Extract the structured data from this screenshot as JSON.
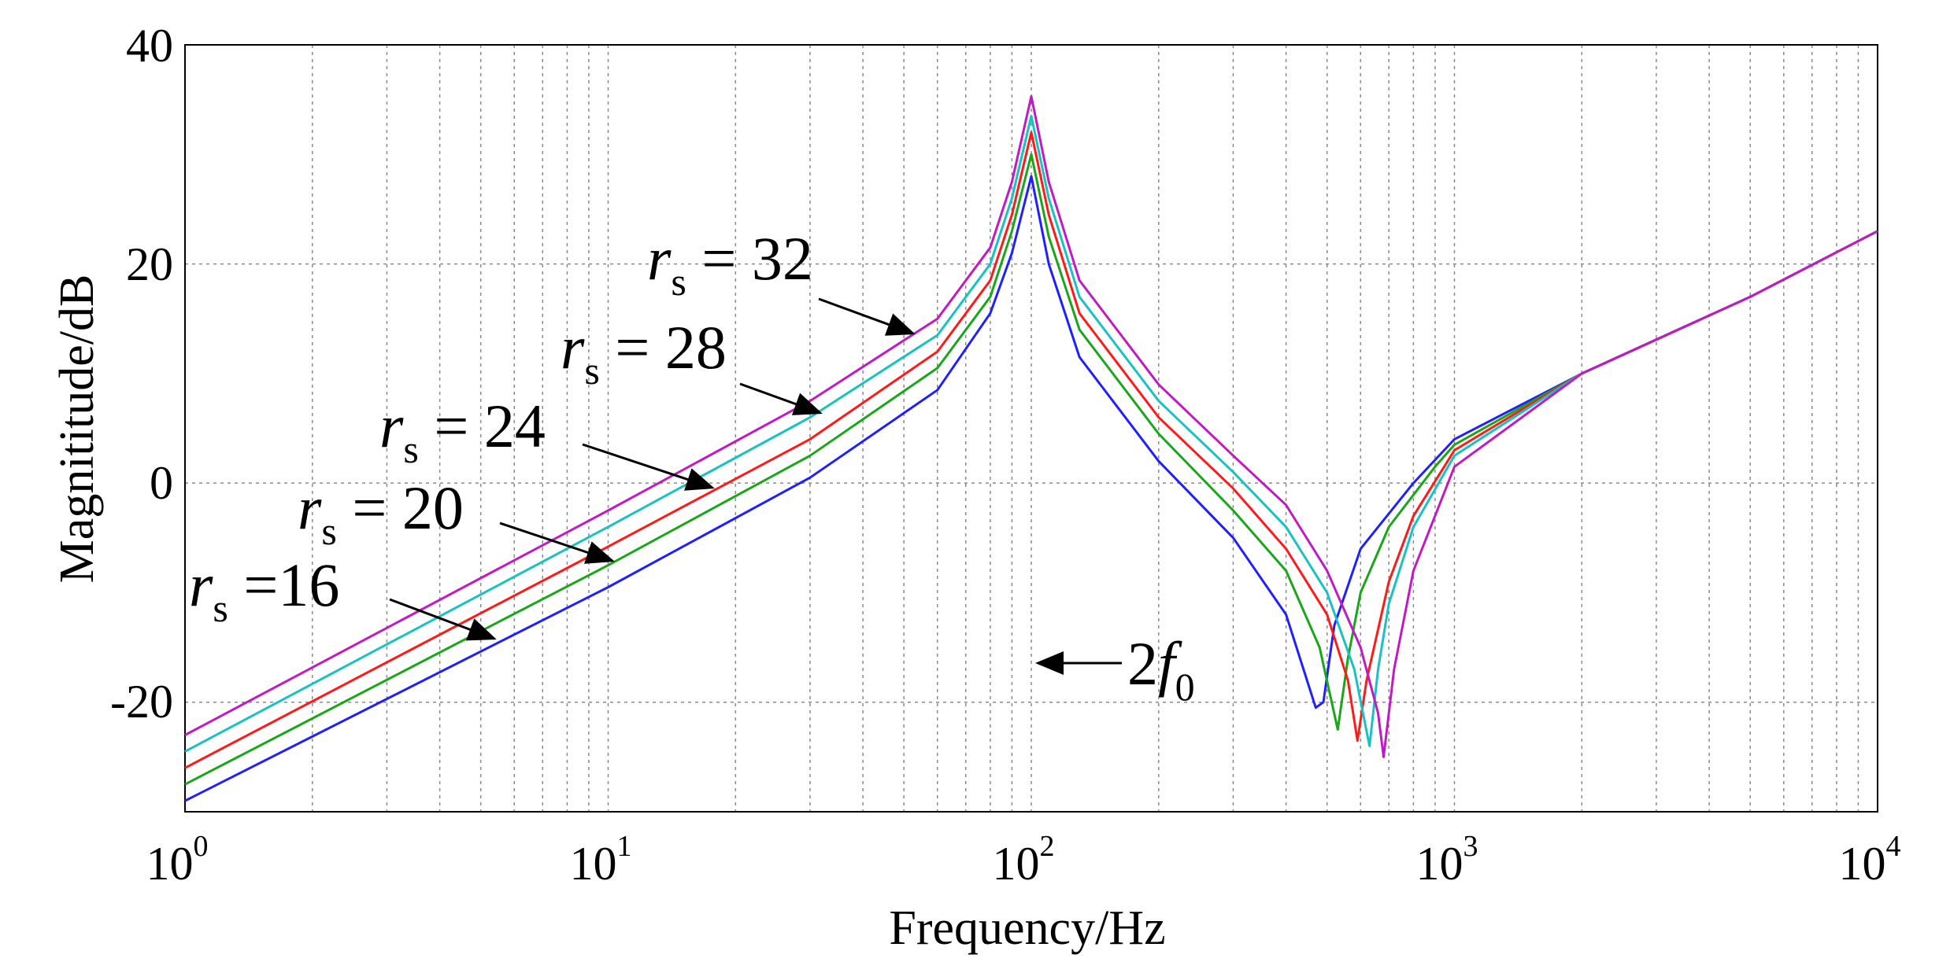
{
  "chart_data": {
    "type": "line",
    "title": "",
    "xlabel": "Frequency/Hz",
    "ylabel": "Magnititude/dB",
    "xscale": "log",
    "xlim": [
      1,
      10000
    ],
    "ylim": [
      -30,
      40
    ],
    "grid": true,
    "x_ticks": [
      {
        "base": "10",
        "exp": "0"
      },
      {
        "base": "10",
        "exp": "1"
      },
      {
        "base": "10",
        "exp": "2"
      },
      {
        "base": "10",
        "exp": "3"
      },
      {
        "base": "10",
        "exp": "4"
      }
    ],
    "y_ticks": [
      "40",
      "20",
      "0",
      "-20"
    ],
    "series": [
      {
        "name": "rs = 16",
        "color": "#1f1fff",
        "x": [
          1,
          10,
          30,
          60,
          80,
          90,
          100,
          110,
          130,
          200,
          300,
          400,
          470,
          490,
          520,
          600,
          800,
          1000,
          2000,
          5000,
          10000
        ],
        "y": [
          -29,
          -9.5,
          0.5,
          8.5,
          15.5,
          21,
          28,
          20,
          11.5,
          2,
          -5,
          -12,
          -20.5,
          -20,
          -13,
          -6,
          0,
          4,
          10,
          17,
          23
        ]
      },
      {
        "name": "rs = 20",
        "color": "#19a619",
        "x": [
          1,
          10,
          30,
          60,
          80,
          90,
          100,
          110,
          130,
          200,
          300,
          400,
          480,
          530,
          560,
          600,
          700,
          900,
          1000,
          2000,
          5000,
          10000
        ],
        "y": [
          -27.5,
          -7.5,
          2.5,
          10.5,
          17,
          23,
          30,
          22.5,
          14,
          4.5,
          -2.5,
          -8,
          -15,
          -22.5,
          -16,
          -10,
          -4,
          1.5,
          3.5,
          10,
          17,
          23
        ]
      },
      {
        "name": "rs = 24",
        "color": "#ff1a1a",
        "x": [
          1,
          10,
          30,
          60,
          80,
          90,
          100,
          110,
          130,
          200,
          300,
          400,
          500,
          560,
          590,
          620,
          700,
          800,
          1000,
          2000,
          5000,
          10000
        ],
        "y": [
          -26,
          -5.8,
          4,
          12,
          18.5,
          24.5,
          32,
          24.5,
          15.5,
          6,
          -0.5,
          -6,
          -12,
          -18,
          -23.5,
          -18,
          -9,
          -3,
          3,
          10,
          17,
          23
        ]
      },
      {
        "name": "rs = 28",
        "color": "#19c2c2",
        "x": [
          1,
          10,
          30,
          60,
          80,
          90,
          100,
          110,
          130,
          200,
          300,
          400,
          500,
          580,
          630,
          660,
          700,
          800,
          1000,
          2000,
          5000,
          10000
        ],
        "y": [
          -24.5,
          -4,
          6,
          13.5,
          20,
          26,
          33.5,
          26,
          17,
          7.5,
          1,
          -4,
          -10,
          -17,
          -24,
          -17,
          -11,
          -4,
          2.5,
          10,
          17,
          23
        ]
      },
      {
        "name": "rs = 32",
        "color": "#c21ac2",
        "x": [
          1,
          10,
          30,
          60,
          80,
          90,
          100,
          110,
          130,
          200,
          300,
          400,
          500,
          600,
          660,
          680,
          720,
          800,
          1000,
          2000,
          5000,
          10000
        ],
        "y": [
          -23,
          -2.5,
          7.5,
          15,
          21.5,
          27.5,
          35.3,
          27.5,
          18.5,
          9,
          2.5,
          -2,
          -8,
          -15,
          -21,
          -25,
          -17,
          -8,
          1.5,
          10,
          17,
          23
        ]
      }
    ],
    "annotations": [
      {
        "var": "r",
        "sub": "s",
        "text": " = 32"
      },
      {
        "var": "r",
        "sub": "s",
        "text": " = 28"
      },
      {
        "var": "r",
        "sub": "s",
        "text": " = 24"
      },
      {
        "var": "r",
        "sub": "s",
        "text": " = 20"
      },
      {
        "var": "r",
        "sub": "s",
        "text": " =16"
      },
      {
        "prefix": "2",
        "var": "f",
        "sub": "0"
      }
    ]
  }
}
